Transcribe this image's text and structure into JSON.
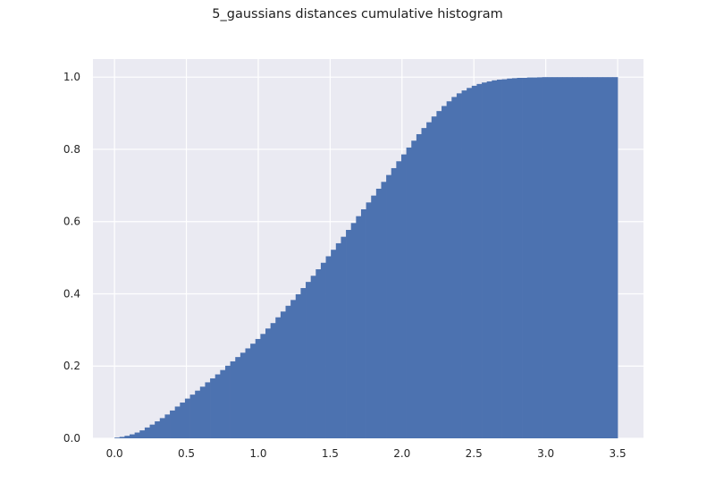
{
  "chart_data": {
    "type": "bar",
    "histogram": "cumulative",
    "title": "5_gaussians distances cumulative histogram",
    "xlabel": "",
    "ylabel": "",
    "xlim": [
      -0.15,
      3.68
    ],
    "ylim": [
      0,
      1.05
    ],
    "grid": true,
    "x_ticks": [
      0.0,
      0.5,
      1.0,
      1.5,
      2.0,
      2.5,
      3.0,
      3.5
    ],
    "x_tick_labels": [
      "0.0",
      "0.5",
      "1.0",
      "1.5",
      "2.0",
      "2.5",
      "3.0",
      "3.5"
    ],
    "y_ticks": [
      0.0,
      0.2,
      0.4,
      0.6,
      0.8,
      1.0
    ],
    "y_tick_labels": [
      "0.0",
      "0.2",
      "0.4",
      "0.6",
      "0.8",
      "1.0"
    ],
    "bins": {
      "start": 0.0,
      "width": 0.035
    },
    "series": [
      {
        "name": "5_gaussians distances",
        "color": "#4c72b0",
        "values": [
          0.002,
          0.004,
          0.007,
          0.011,
          0.016,
          0.022,
          0.03,
          0.038,
          0.047,
          0.056,
          0.066,
          0.077,
          0.088,
          0.099,
          0.11,
          0.121,
          0.132,
          0.143,
          0.155,
          0.166,
          0.177,
          0.189,
          0.201,
          0.213,
          0.225,
          0.237,
          0.249,
          0.262,
          0.275,
          0.289,
          0.304,
          0.319,
          0.335,
          0.351,
          0.367,
          0.383,
          0.399,
          0.416,
          0.433,
          0.45,
          0.468,
          0.486,
          0.504,
          0.522,
          0.54,
          0.558,
          0.577,
          0.596,
          0.615,
          0.634,
          0.653,
          0.672,
          0.691,
          0.71,
          0.729,
          0.748,
          0.767,
          0.786,
          0.805,
          0.824,
          0.842,
          0.859,
          0.875,
          0.891,
          0.906,
          0.92,
          0.933,
          0.945,
          0.955,
          0.963,
          0.97,
          0.976,
          0.981,
          0.985,
          0.988,
          0.991,
          0.993,
          0.994,
          0.996,
          0.997,
          0.998,
          0.998,
          0.999,
          0.999,
          0.9995,
          1.0,
          1.0,
          1.0,
          1.0,
          1.0,
          1.0,
          1.0,
          1.0,
          1.0,
          1.0,
          1.0,
          1.0,
          1.0,
          1.0,
          1.0
        ]
      }
    ]
  }
}
